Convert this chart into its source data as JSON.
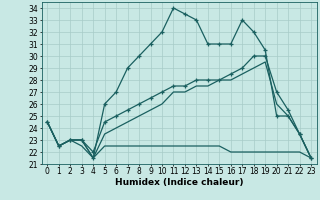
{
  "title": "",
  "xlabel": "Humidex (Indice chaleur)",
  "xlim": [
    -0.5,
    23.5
  ],
  "ylim": [
    21,
    34.5
  ],
  "xticks": [
    0,
    1,
    2,
    3,
    4,
    5,
    6,
    7,
    8,
    9,
    10,
    11,
    12,
    13,
    14,
    15,
    16,
    17,
    18,
    19,
    20,
    21,
    22,
    23
  ],
  "yticks": [
    21,
    22,
    23,
    24,
    25,
    26,
    27,
    28,
    29,
    30,
    31,
    32,
    33,
    34
  ],
  "bg_color": "#c8e8e4",
  "line_color": "#1a6060",
  "grid_color": "#a8ccc8",
  "line1_x": [
    0,
    1,
    2,
    3,
    4,
    5,
    6,
    7,
    8,
    9,
    10,
    11,
    12,
    13,
    14,
    15,
    16,
    17,
    18,
    19,
    20,
    21,
    22,
    23
  ],
  "line1_y": [
    24.5,
    22.5,
    23,
    23,
    21.5,
    26,
    27,
    29,
    30,
    31,
    32,
    34,
    33.5,
    33,
    31,
    31,
    31,
    33,
    32,
    30.5,
    25,
    25,
    23.5,
    21.5
  ],
  "line2_x": [
    0,
    1,
    2,
    3,
    4,
    5,
    6,
    7,
    8,
    9,
    10,
    11,
    12,
    13,
    14,
    15,
    16,
    17,
    18,
    19,
    20,
    21,
    22,
    23
  ],
  "line2_y": [
    24.5,
    22.5,
    23,
    23,
    22,
    24.5,
    25,
    25.5,
    26,
    26.5,
    27,
    27.5,
    27.5,
    28,
    28,
    28,
    28.5,
    29,
    30,
    30,
    27,
    25.5,
    23.5,
    21.5
  ],
  "line3_x": [
    0,
    1,
    2,
    3,
    4,
    5,
    6,
    7,
    8,
    9,
    10,
    11,
    12,
    13,
    14,
    15,
    16,
    17,
    18,
    19,
    20,
    21,
    22,
    23
  ],
  "line3_y": [
    24.5,
    22.5,
    23,
    22.5,
    21.5,
    22.5,
    22.5,
    22.5,
    22.5,
    22.5,
    22.5,
    22.5,
    22.5,
    22.5,
    22.5,
    22.5,
    22,
    22,
    22,
    22,
    22,
    22,
    22,
    21.5
  ],
  "line4_x": [
    0,
    1,
    2,
    3,
    4,
    5,
    6,
    7,
    8,
    9,
    10,
    11,
    12,
    13,
    14,
    15,
    16,
    17,
    18,
    19,
    20,
    21,
    22,
    23
  ],
  "line4_y": [
    24.5,
    22.5,
    23,
    23,
    21.5,
    23.5,
    24,
    24.5,
    25,
    25.5,
    26,
    27,
    27,
    27.5,
    27.5,
    28,
    28,
    28.5,
    29,
    29.5,
    26,
    25,
    23.5,
    21.5
  ],
  "tick_fontsize": 5.5,
  "label_fontsize": 6.5
}
